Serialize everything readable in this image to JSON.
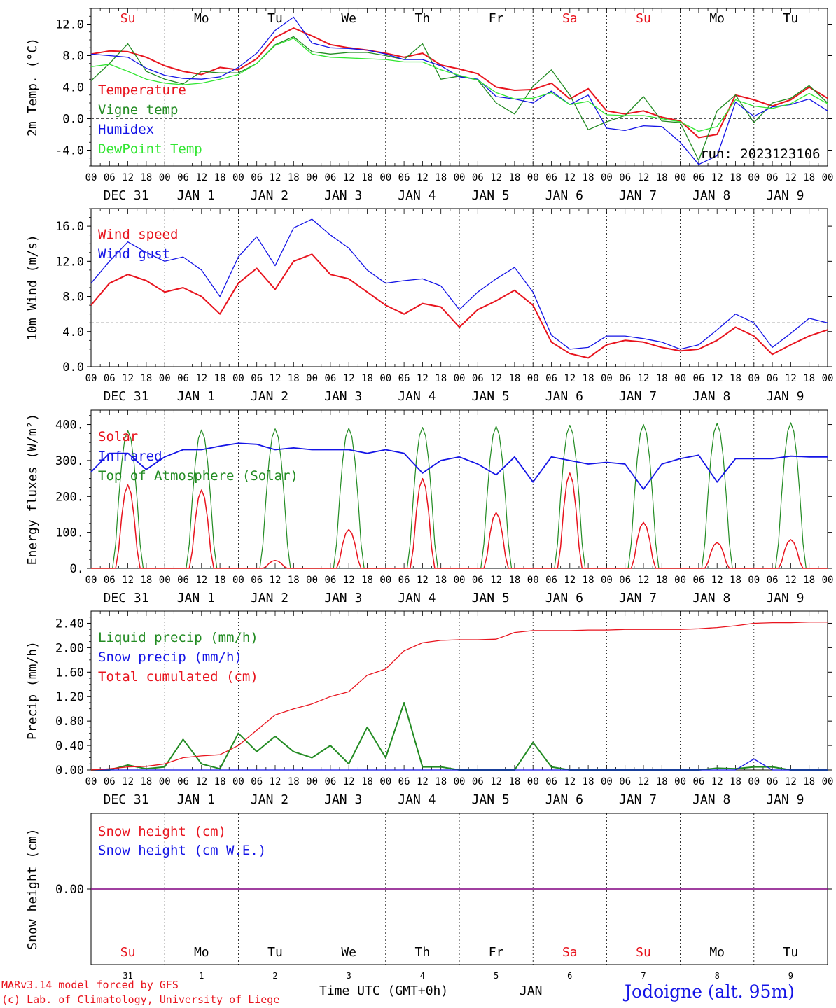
{
  "run_label": "run: 2023123106",
  "footer": {
    "model_line": "MARv3.14 model forced by GFS",
    "lab_line": "(c) Lab. of Climatology, University of Liege",
    "time_label": "Time UTC (GMT+0h)",
    "month_label": "JAN",
    "station": "Jodoigne (alt. 95m)"
  },
  "colors": {
    "red": "#e8141e",
    "darkgreen": "#228b22",
    "blue": "#1414e6",
    "lightgreen": "#32e632",
    "purple": "#800080"
  },
  "day_names": [
    "Su",
    "Mo",
    "Tu",
    "We",
    "Th",
    "Fr",
    "Sa",
    "Su",
    "Mo",
    "Tu"
  ],
  "day_name_colors": [
    "red",
    "black",
    "black",
    "black",
    "black",
    "black",
    "red",
    "red",
    "black",
    "black"
  ],
  "date_labels": [
    "DEC 31",
    "JAN  1",
    "JAN  2",
    "JAN  3",
    "JAN  4",
    "JAN  5",
    "JAN  6",
    "JAN  7",
    "JAN  8",
    "JAN  9"
  ],
  "day_numbers": [
    "31",
    "1",
    "2",
    "3",
    "4",
    "5",
    "6",
    "7",
    "8",
    "9"
  ],
  "hour_ticks": [
    "00",
    "06",
    "12",
    "18"
  ],
  "last_hour_tick": "00",
  "chart_data": [
    {
      "type": "line",
      "ylabel": "2m Temp. (°C)",
      "ylim": [
        -6,
        14
      ],
      "yticks": [
        "12.0",
        "8.0",
        "4.0",
        "0.0",
        "-4.0"
      ],
      "ytick_values": [
        12,
        8,
        4,
        0,
        -4
      ],
      "reference_line": 0,
      "x_hours": [
        0,
        6,
        12,
        18,
        24,
        30,
        36,
        42,
        48,
        54,
        60,
        66,
        72,
        78,
        84,
        90,
        96,
        102,
        108,
        114,
        120,
        126,
        132,
        138,
        144,
        150,
        156,
        162,
        168,
        174,
        180,
        186,
        192,
        198,
        204,
        210,
        216,
        222,
        228,
        234,
        240
      ],
      "series": [
        {
          "name": "Temperature",
          "color": "red",
          "values": [
            8.2,
            8.6,
            8.5,
            7.8,
            6.7,
            6.0,
            5.6,
            6.5,
            6.2,
            7.6,
            10.3,
            11.5,
            10.5,
            9.4,
            9.0,
            8.7,
            8.3,
            7.8,
            8.3,
            6.8,
            6.3,
            5.7,
            4.0,
            3.6,
            3.7,
            4.5,
            2.5,
            3.8,
            1.0,
            0.6,
            1.0,
            0.2,
            -0.3,
            -2.4,
            -2.0,
            3.0,
            2.4,
            1.6,
            2.4,
            4.0,
            2.6
          ]
        },
        {
          "name": "Vigne temp",
          "color": "darkgreen",
          "values": [
            4.8,
            7.0,
            9.5,
            6.0,
            5.0,
            4.4,
            6.0,
            5.8,
            5.8,
            7.0,
            9.4,
            10.4,
            8.5,
            8.2,
            8.4,
            8.4,
            8.0,
            7.5,
            9.5,
            5.0,
            5.4,
            4.9,
            2.0,
            0.6,
            4.1,
            6.2,
            3.0,
            -1.4,
            -0.4,
            0.4,
            2.8,
            -0.3,
            -0.5,
            -5.3,
            1.0,
            3.0,
            -0.5,
            2.0,
            2.6,
            4.2,
            2.0
          ]
        },
        {
          "name": "Humidex",
          "color": "blue",
          "values": [
            8.2,
            8.0,
            7.8,
            6.4,
            5.5,
            5.1,
            5.0,
            5.3,
            6.5,
            8.3,
            11.2,
            12.9,
            9.6,
            9.0,
            8.9,
            8.7,
            8.2,
            7.5,
            7.5,
            6.7,
            5.3,
            5.0,
            2.8,
            2.5,
            2.0,
            3.5,
            1.8,
            3.0,
            -1.2,
            -1.5,
            -0.9,
            -1.0,
            -3.0,
            -5.8,
            -4.7,
            2.1,
            0.3,
            1.5,
            1.8,
            2.5,
            1.0
          ]
        },
        {
          "name": "DewPoint Temp",
          "color": "lightgreen",
          "values": [
            6.6,
            6.9,
            6.0,
            5.0,
            4.5,
            4.3,
            4.5,
            5.0,
            5.6,
            7.0,
            9.3,
            10.2,
            8.2,
            7.8,
            7.7,
            7.6,
            7.5,
            7.2,
            7.2,
            6.2,
            5.5,
            4.9,
            3.3,
            2.5,
            2.6,
            3.3,
            1.8,
            2.2,
            0.5,
            0.4,
            0.4,
            0.0,
            -0.4,
            -1.6,
            -1.0,
            2.4,
            1.6,
            1.3,
            1.9,
            3.2,
            1.9
          ]
        }
      ]
    },
    {
      "type": "line",
      "ylabel": "10m Wind (m/s)",
      "ylim": [
        0,
        18
      ],
      "yticks": [
        "16.0",
        "12.0",
        "8.0",
        "4.0",
        "0.0"
      ],
      "ytick_values": [
        16,
        12,
        8,
        4,
        0
      ],
      "reference_line": 5,
      "x_hours": [
        0,
        6,
        12,
        18,
        24,
        30,
        36,
        42,
        48,
        54,
        60,
        66,
        72,
        78,
        84,
        90,
        96,
        102,
        108,
        114,
        120,
        126,
        132,
        138,
        144,
        150,
        156,
        162,
        168,
        174,
        180,
        186,
        192,
        198,
        204,
        210,
        216,
        222,
        228,
        234,
        240
      ],
      "series": [
        {
          "name": "Wind speed",
          "color": "red",
          "values": [
            7.0,
            9.5,
            10.5,
            9.8,
            8.5,
            9.0,
            8.0,
            6.0,
            9.5,
            11.2,
            8.8,
            12.0,
            12.8,
            10.5,
            10.0,
            8.5,
            7.0,
            6.0,
            7.2,
            6.8,
            4.5,
            6.5,
            7.5,
            8.7,
            7.0,
            2.8,
            1.5,
            1.0,
            2.5,
            3.0,
            2.8,
            2.2,
            1.8,
            2.0,
            3.0,
            4.5,
            3.5,
            1.4,
            2.5,
            3.5,
            4.2
          ]
        },
        {
          "name": "Wind gust",
          "color": "blue",
          "values": [
            9.5,
            12.0,
            14.2,
            13.0,
            12.0,
            12.5,
            11.0,
            8.0,
            12.5,
            14.8,
            11.5,
            15.8,
            16.8,
            15.0,
            13.5,
            11.0,
            9.5,
            9.8,
            10.0,
            9.2,
            6.5,
            8.5,
            10.0,
            11.3,
            8.5,
            3.6,
            2.0,
            2.2,
            3.5,
            3.5,
            3.2,
            2.8,
            2.0,
            2.5,
            4.2,
            6.0,
            5.0,
            2.2,
            3.8,
            5.5,
            5.0
          ]
        }
      ]
    },
    {
      "type": "line",
      "ylabel": "Energy fluxes (W/m²)",
      "ylim": [
        0,
        440
      ],
      "yticks": [
        "400.",
        "300.",
        "200.",
        "100.",
        "0."
      ],
      "ytick_values": [
        400,
        300,
        200,
        100,
        0
      ],
      "series_note": "daily cycles",
      "series": [
        {
          "name": "Solar",
          "color": "red",
          "daily_peaks": [
            232,
            218,
            22,
            108,
            250,
            155,
            265,
            128,
            72,
            80
          ]
        },
        {
          "name": "Infrared",
          "color": "blue",
          "values": [
            268,
            320,
            320,
            275,
            310,
            330,
            330,
            340,
            348,
            345,
            330,
            335,
            330,
            330,
            330,
            320,
            330,
            320,
            265,
            300,
            310,
            290,
            260,
            310,
            240,
            310,
            300,
            290,
            295,
            290,
            220,
            290,
            305,
            315,
            240,
            305,
            305,
            305,
            312,
            310,
            310
          ]
        },
        {
          "name": "Top of Atmosphere (Solar)",
          "color": "darkgreen",
          "daily_peaks": [
            383,
            385,
            388,
            390,
            392,
            395,
            398,
            400,
            403,
            405
          ]
        }
      ]
    },
    {
      "type": "line",
      "ylabel": "Precip (mm/h)",
      "ylim": [
        0,
        2.6
      ],
      "yticks": [
        "2.40",
        "2.00",
        "1.60",
        "1.20",
        "0.80",
        "0.40",
        "0.00"
      ],
      "ytick_values": [
        2.4,
        2.0,
        1.6,
        1.2,
        0.8,
        0.4,
        0.0
      ],
      "x_hours": [
        0,
        6,
        12,
        18,
        24,
        30,
        36,
        42,
        48,
        54,
        60,
        66,
        72,
        78,
        84,
        90,
        96,
        102,
        108,
        114,
        120,
        126,
        132,
        138,
        144,
        150,
        156,
        162,
        168,
        174,
        180,
        186,
        192,
        198,
        204,
        210,
        216,
        222,
        228,
        234,
        240
      ],
      "series": [
        {
          "name": "Liquid precip (mm/h)",
          "color": "darkgreen",
          "values": [
            0,
            0,
            0.08,
            0.02,
            0.05,
            0.5,
            0.1,
            0.02,
            0.6,
            0.3,
            0.55,
            0.3,
            0.2,
            0.4,
            0.1,
            0.7,
            0.2,
            1.1,
            0.05,
            0.05,
            0,
            0,
            0,
            0,
            0.45,
            0.05,
            0,
            0,
            0,
            0,
            0,
            0,
            0,
            0,
            0.03,
            0.02,
            0.05,
            0.05,
            0,
            0,
            0
          ]
        },
        {
          "name": "Snow precip (mm/h)",
          "color": "blue",
          "values": [
            0,
            0,
            0,
            0,
            0,
            0,
            0,
            0,
            0,
            0,
            0,
            0,
            0,
            0,
            0,
            0,
            0,
            0,
            0,
            0,
            0,
            0,
            0,
            0,
            0,
            0,
            0,
            0,
            0,
            0,
            0,
            0,
            0,
            0,
            0,
            0,
            0.18,
            0,
            0,
            0,
            0
          ]
        },
        {
          "name": "Total cumulated (cm)",
          "color": "red",
          "values": [
            0,
            0.02,
            0.05,
            0.06,
            0.1,
            0.2,
            0.23,
            0.25,
            0.4,
            0.65,
            0.9,
            1.0,
            1.08,
            1.2,
            1.28,
            1.55,
            1.65,
            1.95,
            2.08,
            2.12,
            2.13,
            2.13,
            2.14,
            2.25,
            2.28,
            2.28,
            2.28,
            2.29,
            2.29,
            2.3,
            2.3,
            2.3,
            2.3,
            2.31,
            2.33,
            2.36,
            2.4,
            2.41,
            2.41,
            2.42,
            2.42
          ]
        }
      ]
    },
    {
      "type": "line",
      "ylabel": "Snow height (cm)",
      "ylim": [
        -1,
        1
      ],
      "yticks": [
        "0.00"
      ],
      "ytick_values": [
        0
      ],
      "series": [
        {
          "name": "Snow height (cm)",
          "color": "red",
          "values": [
            0,
            0
          ]
        },
        {
          "name": "Snow height (cm W.E.)",
          "color": "blue",
          "values": [
            0,
            0
          ]
        }
      ]
    }
  ]
}
